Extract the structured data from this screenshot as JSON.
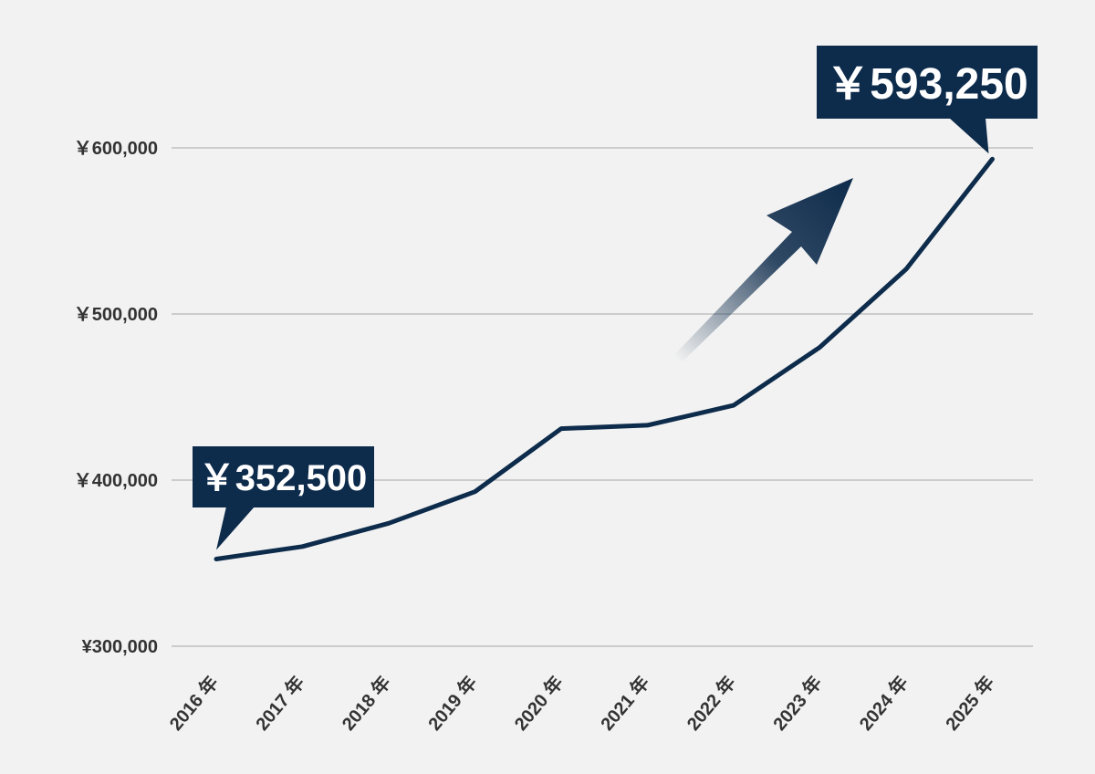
{
  "chart_data": {
    "type": "line",
    "categories": [
      "2016 年",
      "2017 年",
      "2018 年",
      "2019 年",
      "2020 年",
      "2021 年",
      "2022 年",
      "2023 年",
      "2024 年",
      "2025 年"
    ],
    "series": [
      {
        "values": [
          352500,
          360000,
          374000,
          393000,
          431000,
          433000,
          445000,
          480000,
          527000,
          593250
        ]
      }
    ],
    "y_ticks": [
      {
        "value": 300000,
        "label": "¥300,000"
      },
      {
        "value": 400000,
        "label": "￥400,000"
      },
      {
        "value": 500000,
        "label": "￥500,000"
      },
      {
        "value": 600000,
        "label": "￥600,000"
      }
    ],
    "ylim": [
      300000,
      600000
    ],
    "grid": true,
    "annotations": {
      "start": {
        "category": "2016 年",
        "label": "￥352,500"
      },
      "end": {
        "category": "2025 年",
        "label": "￥593,250"
      }
    },
    "colors": {
      "line": "#0d2b4b",
      "callout": "#0d2b4b",
      "grid": "#a6a6a6",
      "background": "#f2f2f2"
    }
  }
}
